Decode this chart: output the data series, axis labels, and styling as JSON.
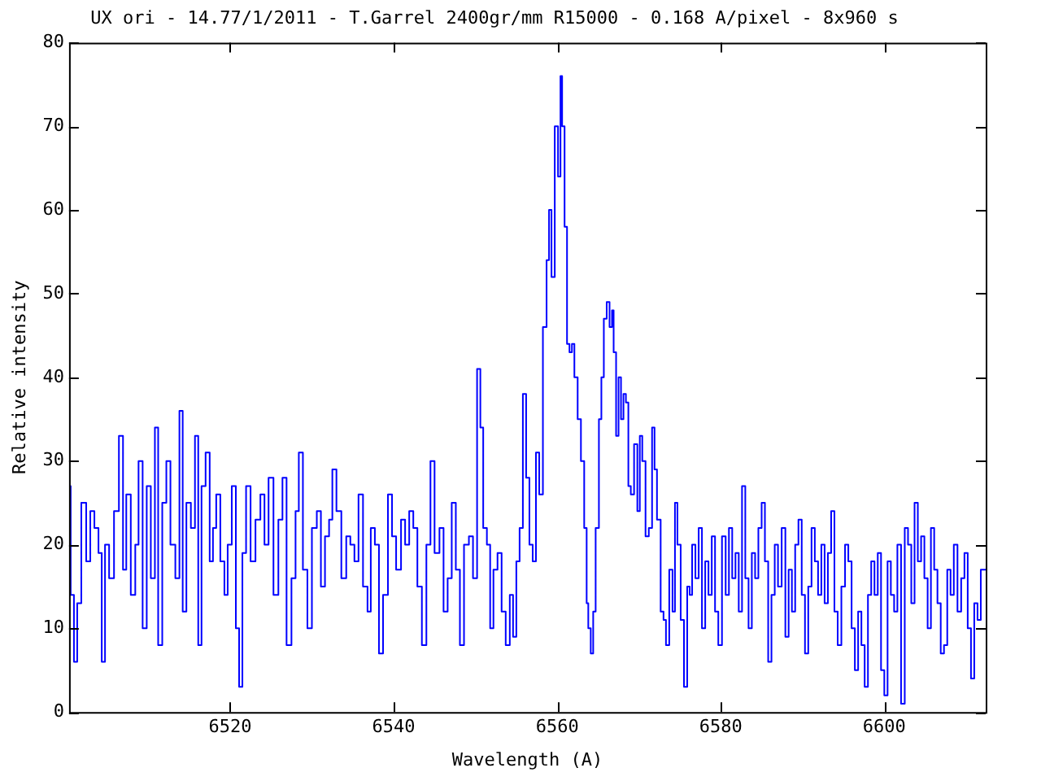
{
  "chart_data": {
    "type": "step",
    "title": "UX ori - 14.77/1/2011 - T.Garrel 2400gr/mm R15000 - 0.168 A/pixel - 8x960 s",
    "xlabel": "Wavelength (A)",
    "ylabel": "Relative intensity",
    "legend": false,
    "marker": "none",
    "xlim": [
      6500.3,
      6612.4
    ],
    "xticks": [
      6520,
      6540,
      6560,
      6580,
      6600
    ],
    "ylim": [
      0,
      80
    ],
    "yticks": [
      0,
      10,
      20,
      30,
      40,
      50,
      60,
      70,
      80
    ],
    "series": [
      {
        "color": "#0000ff",
        "x": [
          6500.3,
          6500.7,
          6501.1,
          6501.5,
          6502.1,
          6502.7,
          6503.1,
          6503.7,
          6504.1,
          6504.5,
          6504.9,
          6505.5,
          6506.1,
          6506.7,
          6507.1,
          6507.5,
          6508.2,
          6508.6,
          6509.0,
          6509.6,
          6510.0,
          6510.6,
          6511.0,
          6511.4,
          6512.0,
          6512.4,
          6513.0,
          6513.6,
          6514.0,
          6514.4,
          6514.9,
          6515.5,
          6515.9,
          6516.3,
          6516.7,
          6517.3,
          6517.7,
          6518.1,
          6518.5,
          6519.1,
          6519.5,
          6519.9,
          6520.5,
          6520.9,
          6521.3,
          6521.7,
          6522.2,
          6522.8,
          6523.4,
          6524.0,
          6524.4,
          6525.0,
          6525.6,
          6526.2,
          6526.6,
          6527.2,
          6527.8,
          6528.2,
          6528.6,
          6529.2,
          6529.7,
          6530.3,
          6530.9,
          6531.3,
          6531.9,
          6532.3,
          6532.7,
          6533.3,
          6533.9,
          6534.5,
          6534.9,
          6535.5,
          6535.9,
          6536.6,
          6537.0,
          6537.4,
          6538.0,
          6538.4,
          6539.0,
          6539.6,
          6540.0,
          6540.6,
          6541.2,
          6541.6,
          6542.2,
          6542.6,
          6543.2,
          6543.7,
          6544.3,
          6544.7,
          6545.3,
          6545.9,
          6546.3,
          6546.9,
          6547.3,
          6547.9,
          6548.3,
          6548.9,
          6549.5,
          6549.9,
          6550.5,
          6550.7,
          6551.2,
          6551.6,
          6552.0,
          6552.4,
          6553.0,
          6553.4,
          6554.0,
          6554.4,
          6554.8,
          6555.2,
          6555.6,
          6556.0,
          6556.4,
          6556.8,
          6557.2,
          6557.6,
          6558.0,
          6558.5,
          6558.9,
          6559.1,
          6559.5,
          6559.9,
          6560.3,
          6560.5,
          6560.7,
          6561.1,
          6561.3,
          6561.7,
          6561.9,
          6562.3,
          6562.7,
          6563.1,
          6563.5,
          6563.7,
          6563.9,
          6564.3,
          6564.5,
          6564.9,
          6565.3,
          6565.5,
          6565.9,
          6566.2,
          6566.6,
          6566.8,
          6567.0,
          6567.4,
          6567.6,
          6568.0,
          6568.2,
          6568.6,
          6568.8,
          6569.2,
          6569.6,
          6570.0,
          6570.2,
          6570.6,
          6571.0,
          6571.4,
          6571.8,
          6572.0,
          6572.4,
          6572.9,
          6573.1,
          6573.5,
          6573.9,
          6574.3,
          6574.5,
          6574.9,
          6575.3,
          6575.7,
          6576.1,
          6576.3,
          6576.7,
          6577.1,
          6577.5,
          6577.9,
          6578.3,
          6578.7,
          6579.1,
          6579.5,
          6579.9,
          6580.4,
          6580.8,
          6581.2,
          6581.6,
          6582.0,
          6582.4,
          6582.8,
          6583.2,
          6583.6,
          6584.0,
          6584.4,
          6584.8,
          6585.2,
          6585.6,
          6586.0,
          6586.4,
          6586.8,
          6587.2,
          6587.7,
          6588.1,
          6588.5,
          6588.9,
          6589.3,
          6589.7,
          6590.1,
          6590.5,
          6590.9,
          6591.3,
          6591.7,
          6592.1,
          6592.5,
          6592.9,
          6593.3,
          6593.7,
          6594.1,
          6594.5,
          6595.0,
          6595.4,
          6595.8,
          6596.2,
          6596.6,
          6597.0,
          6597.4,
          6597.8,
          6598.2,
          6598.6,
          6599.0,
          6599.4,
          6599.8,
          6600.2,
          6600.6,
          6601.0,
          6601.4,
          6601.8,
          6602.3,
          6602.7,
          6603.1,
          6603.5,
          6603.9,
          6604.3,
          6604.7,
          6605.1,
          6605.5,
          6605.9,
          6606.3,
          6606.7,
          6607.1,
          6607.5,
          6607.9,
          6608.3,
          6608.7,
          6609.2,
          6609.6,
          6610.0,
          6610.4,
          6610.8,
          6611.2,
          6611.6,
          6612.0,
          6612.4
        ],
        "values": [
          27,
          14,
          6,
          13,
          25,
          18,
          24,
          22,
          19,
          6,
          20,
          16,
          24,
          33,
          17,
          26,
          14,
          20,
          30,
          10,
          27,
          16,
          34,
          8,
          25,
          30,
          20,
          16,
          36,
          12,
          25,
          22,
          33,
          8,
          27,
          31,
          18,
          22,
          26,
          18,
          14,
          20,
          27,
          10,
          3,
          19,
          27,
          18,
          23,
          26,
          20,
          28,
          14,
          23,
          28,
          8,
          16,
          24,
          31,
          17,
          10,
          22,
          24,
          15,
          21,
          23,
          29,
          24,
          16,
          21,
          20,
          18,
          26,
          15,
          12,
          22,
          20,
          7,
          14,
          26,
          21,
          17,
          23,
          20,
          24,
          22,
          15,
          8,
          20,
          30,
          19,
          22,
          12,
          16,
          25,
          17,
          8,
          20,
          21,
          16,
          41,
          34,
          22,
          20,
          10,
          17,
          19,
          12,
          8,
          14,
          9,
          18,
          22,
          38,
          28,
          20,
          18,
          31,
          26,
          46,
          54,
          60,
          52,
          70,
          64,
          76,
          70,
          58,
          44,
          43,
          44,
          40,
          35,
          30,
          22,
          13,
          10,
          7,
          12,
          22,
          35,
          40,
          47,
          49,
          46,
          48,
          43,
          33,
          40,
          35,
          38,
          37,
          27,
          26,
          32,
          24,
          33,
          30,
          21,
          22,
          34,
          29,
          23,
          12,
          11,
          8,
          17,
          12,
          25,
          20,
          11,
          3,
          15,
          14,
          20,
          16,
          22,
          10,
          18,
          14,
          21,
          12,
          8,
          21,
          14,
          22,
          16,
          19,
          12,
          27,
          16,
          10,
          19,
          16,
          22,
          25,
          18,
          6,
          14,
          20,
          15,
          22,
          9,
          17,
          12,
          20,
          23,
          14,
          7,
          15,
          22,
          18,
          14,
          20,
          13,
          19,
          24,
          12,
          8,
          15,
          20,
          18,
          10,
          5,
          12,
          8,
          3,
          14,
          18,
          14,
          19,
          5,
          2,
          18,
          14,
          12,
          20,
          1,
          22,
          20,
          13,
          25,
          18,
          21,
          16,
          10,
          22,
          17,
          13,
          7,
          8,
          17,
          14,
          20,
          12,
          16,
          19,
          10,
          4,
          13,
          11,
          17,
          17
        ]
      }
    ]
  }
}
